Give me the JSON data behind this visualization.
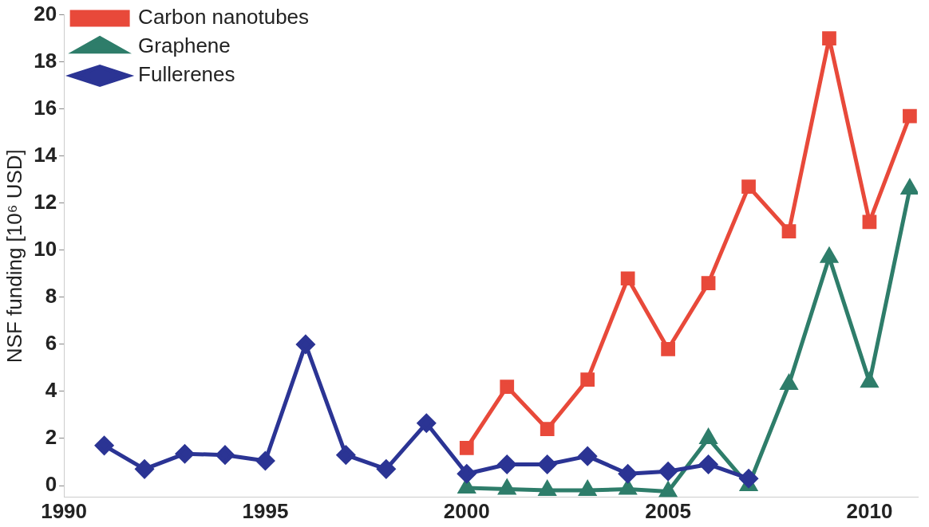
{
  "chart_data": {
    "type": "line",
    "ylabel": "NSF funding [10⁶ USD]",
    "xlim": [
      1990,
      2011.2
    ],
    "xticks": [
      1990,
      1995,
      2000,
      2005,
      2010
    ],
    "ylim": [
      -0.5,
      20
    ],
    "yticks": [
      0,
      2,
      4,
      6,
      8,
      10,
      12,
      14,
      16,
      18,
      20
    ],
    "grid": false,
    "legend": "top left",
    "series": [
      {
        "name": "Carbon nanotubes",
        "color": "#e8493a",
        "marker": "square",
        "x": [
          2000,
          2001,
          2002,
          2003,
          2004,
          2005,
          2006,
          2007,
          2008,
          2009,
          2010,
          2011
        ],
        "values": [
          1.6,
          4.2,
          2.4,
          4.5,
          8.8,
          5.8,
          8.6,
          12.7,
          10.8,
          19.0,
          11.2,
          15.7
        ]
      },
      {
        "name": "Graphene",
        "color": "#2e7d6a",
        "marker": "triangle",
        "x": [
          2000,
          2001,
          2002,
          2003,
          2004,
          2005,
          2006,
          2007,
          2008,
          2009,
          2010,
          2011
        ],
        "values": [
          -0.1,
          -0.15,
          -0.2,
          -0.2,
          -0.15,
          -0.25,
          2.0,
          0.0,
          4.3,
          9.7,
          4.4,
          12.6
        ]
      },
      {
        "name": "Fullerenes",
        "color": "#2b3494",
        "marker": "diamond",
        "x": [
          1991,
          1992,
          1993,
          1994,
          1995,
          1996,
          1997,
          1998,
          1999,
          2000,
          2001,
          2002,
          2003,
          2004,
          2005,
          2006,
          2007
        ],
        "values": [
          1.7,
          0.7,
          1.35,
          1.3,
          1.05,
          6.0,
          1.3,
          0.7,
          2.65,
          0.5,
          0.9,
          0.9,
          1.25,
          0.5,
          0.6,
          0.9,
          0.3
        ]
      }
    ]
  }
}
